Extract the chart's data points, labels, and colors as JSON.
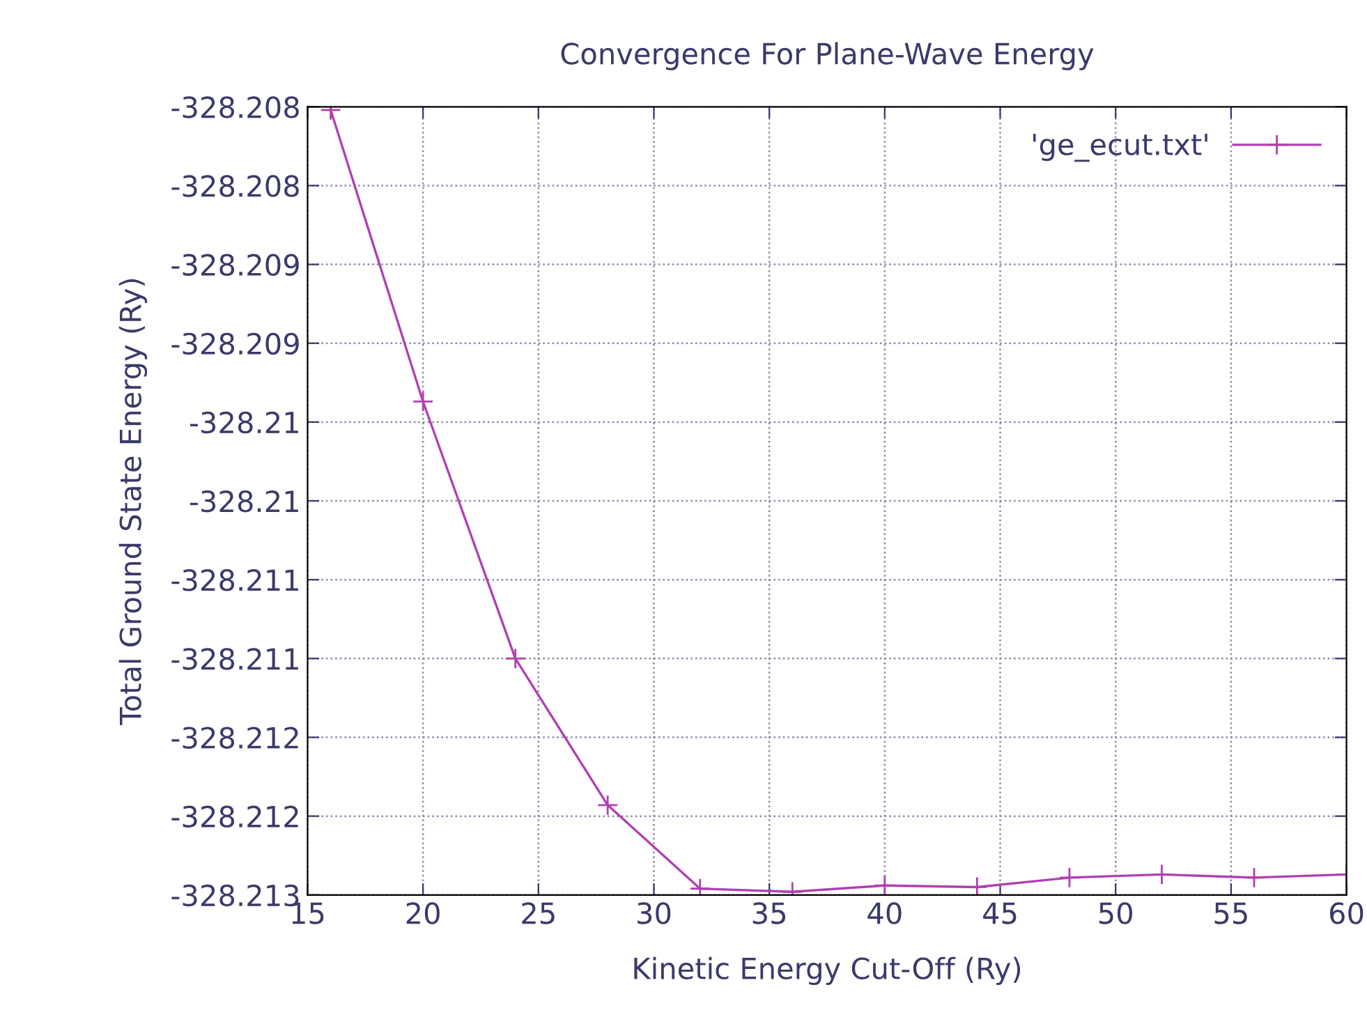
{
  "chart_data": {
    "type": "line",
    "title": "Convergence For Plane-Wave Energy",
    "xlabel": "Kinetic Energy Cut-Off (Ry)",
    "ylabel": "Total Ground State Energy (Ry)",
    "x": [
      16,
      20,
      24,
      28,
      32,
      36,
      40,
      44,
      48,
      52,
      56,
      60
    ],
    "series": [
      {
        "name": "'ge_ecut.txt'",
        "color": "#b040b0",
        "values": [
          -328.20802,
          -328.20987,
          -328.2115,
          -328.21243,
          -328.21296,
          -328.21298,
          -328.21294,
          -328.21295,
          -328.21289,
          -328.21287,
          -328.21289,
          -328.21287
        ]
      }
    ],
    "xlim": [
      15,
      60
    ],
    "xticks": [
      15,
      20,
      25,
      30,
      35,
      40,
      45,
      50,
      55,
      60
    ],
    "ylim": [
      -328.213,
      -328.208
    ],
    "yticks": [
      {
        "value": -328.213,
        "label": "-328.213"
      },
      {
        "value": -328.2125,
        "label": "-328.212"
      },
      {
        "value": -328.212,
        "label": "-328.212"
      },
      {
        "value": -328.2115,
        "label": "-328.211"
      },
      {
        "value": -328.211,
        "label": "-328.211"
      },
      {
        "value": -328.2105,
        "label": "-328.21"
      },
      {
        "value": -328.21,
        "label": "-328.21"
      },
      {
        "value": -328.2095,
        "label": "-328.209"
      },
      {
        "value": -328.209,
        "label": "-328.209"
      },
      {
        "value": -328.2085,
        "label": "-328.208"
      },
      {
        "value": -328.208,
        "label": "-328.208"
      }
    ],
    "grid": true,
    "legend": "top right",
    "marker": "cross",
    "line_style": "solid"
  }
}
